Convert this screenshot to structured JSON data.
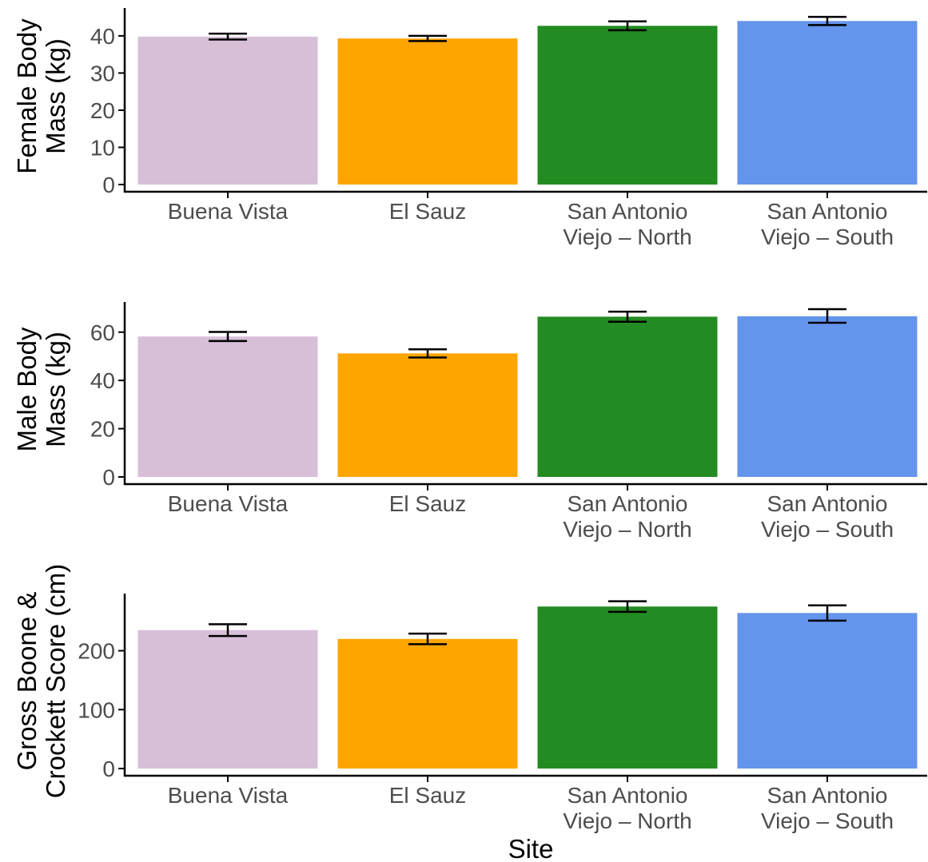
{
  "chart_data": [
    {
      "type": "bar",
      "categories": [
        "Buena Vista",
        "El Sauz",
        "San Antonio Viejo – North",
        "San Antonio Viejo – South"
      ],
      "category_lines": [
        [
          "Buena Vista"
        ],
        [
          "El Sauz"
        ],
        [
          "San Antonio",
          "Viejo – North"
        ],
        [
          "San Antonio",
          "Viejo – South"
        ]
      ],
      "values": [
        39.8,
        39.3,
        42.7,
        44.0
      ],
      "error_low": [
        39.0,
        38.6,
        41.5,
        42.9
      ],
      "error_high": [
        40.6,
        40.0,
        43.9,
        45.1
      ],
      "ylabel_lines": [
        "Female Body",
        "Mass (kg)"
      ],
      "ylim": [
        0,
        47.5
      ],
      "yticks": [
        0,
        10,
        20,
        30,
        40
      ],
      "xlabel": "",
      "grid": false,
      "legend": "none"
    },
    {
      "type": "bar",
      "categories": [
        "Buena Vista",
        "El Sauz",
        "San Antonio Viejo – North",
        "San Antonio Viejo – South"
      ],
      "category_lines": [
        [
          "Buena Vista"
        ],
        [
          "El Sauz"
        ],
        [
          "San Antonio",
          "Viejo – North"
        ],
        [
          "San Antonio",
          "Viejo – South"
        ]
      ],
      "values": [
        58.2,
        51.2,
        66.4,
        66.6
      ],
      "error_low": [
        56.3,
        49.5,
        64.3,
        63.9
      ],
      "error_high": [
        60.1,
        52.9,
        68.5,
        69.5
      ],
      "ylabel_lines": [
        "Male Body",
        "Mass (kg)"
      ],
      "ylim": [
        0,
        72.5
      ],
      "yticks": [
        0,
        20,
        40,
        60
      ],
      "xlabel": "",
      "grid": false,
      "legend": "none"
    },
    {
      "type": "bar",
      "categories": [
        "Buena Vista",
        "El Sauz",
        "San Antonio Viejo – North",
        "San Antonio Viejo – South"
      ],
      "category_lines": [
        [
          "Buena Vista"
        ],
        [
          "El Sauz"
        ],
        [
          "San Antonio",
          "Viejo – North"
        ],
        [
          "San Antonio",
          "Viejo – South"
        ]
      ],
      "values": [
        235,
        220,
        275,
        264
      ],
      "error_low": [
        225,
        211,
        266,
        251
      ],
      "error_high": [
        245,
        229,
        284,
        277
      ],
      "ylabel_lines": [
        "Gross Boone &",
        "Crockett Score (cm)"
      ],
      "ylim": [
        0,
        297
      ],
      "yticks": [
        0,
        100,
        200
      ],
      "xlabel": "Site",
      "grid": false,
      "legend": "none"
    }
  ],
  "colors": {
    "bars": [
      "#d8bfd8",
      "#ffa500",
      "#228b22",
      "#6495ed"
    ],
    "axis": "#000000",
    "tick_text": "#4d4d4d",
    "title_text": "#000000"
  }
}
